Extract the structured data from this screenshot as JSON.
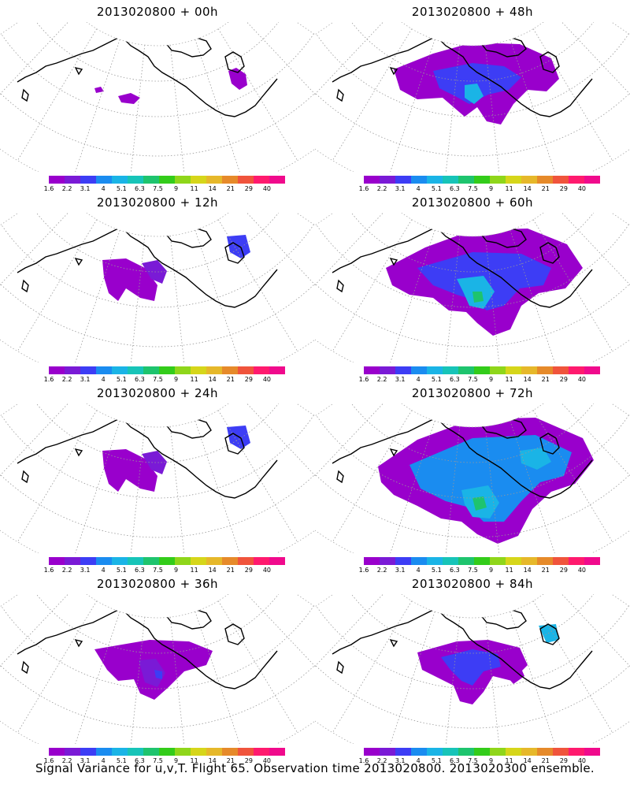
{
  "panels": [
    {
      "title": "2013020800  +  00h",
      "level": 0
    },
    {
      "title": "2013020800  +  48h",
      "level": 3
    },
    {
      "title": "2013020800  +  12h",
      "level": 1
    },
    {
      "title": "2013020800  +  60h",
      "level": 4
    },
    {
      "title": "2013020800  +  24h",
      "level": 1
    },
    {
      "title": "2013020800  +  72h",
      "level": 5
    },
    {
      "title": "2013020800  +  36h",
      "level": 2
    },
    {
      "title": "2013020800  +  84h",
      "level": 6
    }
  ],
  "colorbar": {
    "colors": [
      "#9900cc",
      "#7a1ad6",
      "#3d3df5",
      "#1a8cf0",
      "#1ab4e6",
      "#17c4b8",
      "#1ec46e",
      "#33cc1a",
      "#8fd61a",
      "#d6d61a",
      "#e6b82a",
      "#e68a2a",
      "#f0543c",
      "#ff1a6e",
      "#f00a8c"
    ],
    "labels": [
      "1.6",
      "2.2",
      "3.1",
      "4",
      "5.1",
      "6.3",
      "7.5",
      "9",
      "11",
      "14",
      "21",
      "29",
      "40"
    ]
  },
  "footer": "Signal Variance for u,v,T. Flight 65. Observation time 2013020800. 2013020300 ensemble."
}
